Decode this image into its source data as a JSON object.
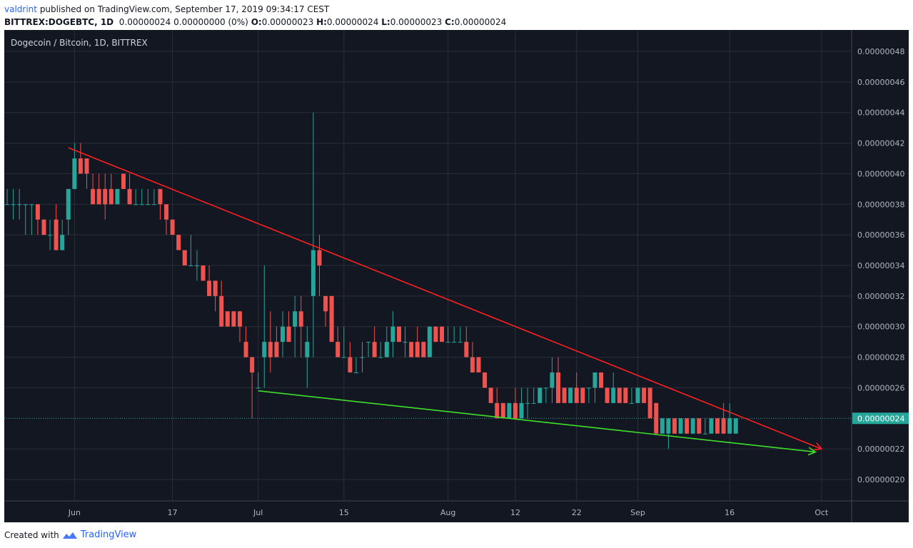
{
  "header": {
    "user": "valdrint",
    "published": "published on TradingView.com, September 17, 2019 09:34:17 CEST",
    "symbol": "BITTREX:DOGEBTC, 1D",
    "change": "0.00000024 0.00000000 (0%)",
    "o_label": "O:",
    "o_value": "0.00000023",
    "h_label": "H:",
    "h_value": "0.00000024",
    "l_label": "L:",
    "l_value": "0.00000023",
    "c_label": "C:",
    "c_value": "0.00000024"
  },
  "footer": {
    "created_with": "Created with",
    "brand": "TradingView"
  },
  "colors": {
    "background": "#131722",
    "grid": "#2a2e39",
    "axis_text": "#b2b5be",
    "up": "#26a69a",
    "down": "#ef5350",
    "upper_trendline": "#ff1f1f",
    "lower_trendline": "#3ee12a",
    "last_price_badge": "#26a69a"
  },
  "chart_data": {
    "type": "candlestick",
    "title": "Dogecoin / Bitcoin, 1D, BITTREX",
    "x_tick_labels": [
      "Jun",
      "17",
      "Jul",
      "15",
      "Aug",
      "12",
      "22",
      "Sep",
      "16",
      "Oct"
    ],
    "x_ticks_date": [
      "2019-06-01",
      "2019-06-17",
      "2019-07-01",
      "2019-07-15",
      "2019-08-01",
      "2019-08-12",
      "2019-08-22",
      "2019-09-01",
      "2019-09-16",
      "2019-10-01"
    ],
    "x_range": [
      "2019-05-21",
      "2019-10-03"
    ],
    "y_tick_labels": [
      "0.00000048",
      "0.00000046",
      "0.00000044",
      "0.00000042",
      "0.00000040",
      "0.00000038",
      "0.00000036",
      "0.00000034",
      "0.00000032",
      "0.00000030",
      "0.00000028",
      "0.00000026",
      "0.00000022",
      "0.00000020"
    ],
    "y_ticks": [
      48,
      46,
      44,
      42,
      40,
      38,
      36,
      34,
      32,
      30,
      28,
      26,
      22,
      20
    ],
    "y_unit_scale": "1e-8 BTC",
    "y_range": [
      18.6,
      49.4
    ],
    "grid": true,
    "last_price": {
      "value": 24,
      "label": "0.00000024"
    },
    "ohlc_fields": [
      "date",
      "open",
      "high",
      "low",
      "close"
    ],
    "candles": [
      [
        "2019-05-21",
        38,
        39,
        38,
        38
      ],
      [
        "2019-05-22",
        38,
        39,
        37,
        38
      ],
      [
        "2019-05-23",
        38,
        39,
        37,
        38
      ],
      [
        "2019-05-24",
        38,
        38,
        36,
        38
      ],
      [
        "2019-05-25",
        38,
        38,
        36,
        38
      ],
      [
        "2019-05-26",
        38,
        38,
        36,
        37
      ],
      [
        "2019-05-27",
        37,
        37,
        36,
        36
      ],
      [
        "2019-05-28",
        36,
        37,
        35,
        36
      ],
      [
        "2019-05-29",
        37,
        38,
        35,
        35
      ],
      [
        "2019-05-30",
        35,
        37,
        35,
        36
      ],
      [
        "2019-05-31",
        37,
        39,
        36,
        39
      ],
      [
        "2019-06-01",
        39,
        42,
        39,
        41
      ],
      [
        "2019-06-02",
        41,
        42,
        40,
        40
      ],
      [
        "2019-06-03",
        41,
        41,
        39,
        40
      ],
      [
        "2019-06-04",
        39,
        40,
        38,
        38
      ],
      [
        "2019-06-05",
        39,
        40,
        38,
        38
      ],
      [
        "2019-06-06",
        39,
        40,
        37,
        38
      ],
      [
        "2019-06-07",
        39,
        40,
        38,
        38
      ],
      [
        "2019-06-08",
        38,
        39,
        38,
        39
      ],
      [
        "2019-06-09",
        40,
        40,
        39,
        39
      ],
      [
        "2019-06-10",
        39,
        40,
        38,
        38
      ],
      [
        "2019-06-11",
        38,
        39,
        38,
        38
      ],
      [
        "2019-06-12",
        38,
        39,
        38,
        38
      ],
      [
        "2019-06-13",
        38,
        39,
        38,
        38
      ],
      [
        "2019-06-14",
        38,
        39,
        38,
        38
      ],
      [
        "2019-06-15",
        39,
        39,
        37,
        38
      ],
      [
        "2019-06-16",
        38,
        38,
        36,
        37
      ],
      [
        "2019-06-17",
        37,
        37,
        36,
        36
      ],
      [
        "2019-06-18",
        36,
        36,
        35,
        35
      ],
      [
        "2019-06-19",
        35,
        35,
        34,
        34
      ],
      [
        "2019-06-20",
        34,
        36,
        34,
        34
      ],
      [
        "2019-06-21",
        34,
        35,
        33,
        34
      ],
      [
        "2019-06-22",
        34,
        34,
        33,
        33
      ],
      [
        "2019-06-23",
        33,
        34,
        32,
        32
      ],
      [
        "2019-06-24",
        33,
        33,
        31,
        32
      ],
      [
        "2019-06-25",
        32,
        33,
        30,
        30
      ],
      [
        "2019-06-26",
        31,
        31,
        30,
        30
      ],
      [
        "2019-06-27",
        31,
        31,
        30,
        30
      ],
      [
        "2019-06-28",
        31,
        31,
        29,
        30
      ],
      [
        "2019-06-29",
        29,
        30,
        28,
        28
      ],
      [
        "2019-06-30",
        28,
        28,
        24,
        27
      ],
      [
        "2019-07-01",
        26,
        27,
        26,
        26
      ],
      [
        "2019-07-02",
        28,
        34,
        26,
        29
      ],
      [
        "2019-07-03",
        29,
        31,
        27,
        28
      ],
      [
        "2019-07-04",
        29,
        30,
        28,
        28
      ],
      [
        "2019-07-05",
        29,
        31,
        28,
        30
      ],
      [
        "2019-07-06",
        30,
        31,
        29,
        29
      ],
      [
        "2019-07-07",
        30,
        32,
        28,
        31
      ],
      [
        "2019-07-08",
        31,
        32,
        28,
        30
      ],
      [
        "2019-07-09",
        28,
        30,
        26,
        29
      ],
      [
        "2019-07-10",
        32,
        44,
        28,
        35
      ],
      [
        "2019-07-11",
        35,
        36,
        32,
        34
      ],
      [
        "2019-07-12",
        32,
        32,
        30,
        31
      ],
      [
        "2019-07-13",
        32,
        32,
        29,
        29
      ],
      [
        "2019-07-14",
        29,
        30,
        28,
        28
      ],
      [
        "2019-07-15",
        28,
        30,
        28,
        28
      ],
      [
        "2019-07-16",
        28,
        29,
        27,
        27
      ],
      [
        "2019-07-17",
        27,
        28,
        27,
        27
      ],
      [
        "2019-07-18",
        28,
        29,
        27,
        28
      ],
      [
        "2019-07-19",
        29,
        29,
        28,
        29
      ],
      [
        "2019-07-20",
        29,
        30,
        28,
        28
      ],
      [
        "2019-07-21",
        28,
        29,
        28,
        28
      ],
      [
        "2019-07-22",
        28,
        30,
        28,
        29
      ],
      [
        "2019-07-23",
        29,
        31,
        28,
        30
      ],
      [
        "2019-07-24",
        30,
        30,
        29,
        29
      ],
      [
        "2019-07-25",
        29,
        30,
        28,
        29
      ],
      [
        "2019-07-26",
        29,
        29,
        28,
        28
      ],
      [
        "2019-07-27",
        29,
        30,
        28,
        28
      ],
      [
        "2019-07-28",
        29,
        29,
        28,
        28
      ],
      [
        "2019-07-29",
        28,
        30,
        28,
        30
      ],
      [
        "2019-07-30",
        30,
        30,
        29,
        29
      ],
      [
        "2019-07-31",
        30,
        30,
        29,
        29
      ],
      [
        "2019-08-01",
        29,
        30,
        29,
        29
      ],
      [
        "2019-08-02",
        29,
        30,
        29,
        29
      ],
      [
        "2019-08-03",
        29,
        30,
        29,
        29
      ],
      [
        "2019-08-04",
        29,
        30,
        28,
        28
      ],
      [
        "2019-08-05",
        28,
        29,
        27,
        27
      ],
      [
        "2019-08-06",
        28,
        28,
        27,
        27
      ],
      [
        "2019-08-07",
        27,
        27,
        26,
        26
      ],
      [
        "2019-08-08",
        26,
        26,
        25,
        25
      ],
      [
        "2019-08-09",
        25,
        26,
        24,
        24
      ],
      [
        "2019-08-10",
        25,
        25,
        24,
        24
      ],
      [
        "2019-08-11",
        24,
        25,
        24,
        25
      ],
      [
        "2019-08-12",
        25,
        26,
        24,
        24
      ],
      [
        "2019-08-13",
        24,
        26,
        24,
        25
      ],
      [
        "2019-08-14",
        25,
        26,
        24,
        25
      ],
      [
        "2019-08-15",
        25,
        26,
        25,
        25
      ],
      [
        "2019-08-16",
        25,
        26,
        25,
        26
      ],
      [
        "2019-08-17",
        26,
        26,
        25,
        26
      ],
      [
        "2019-08-18",
        26,
        28,
        25,
        27
      ],
      [
        "2019-08-19",
        27,
        28,
        25,
        25
      ],
      [
        "2019-08-20",
        26,
        26,
        25,
        25
      ],
      [
        "2019-08-21",
        25,
        26,
        25,
        26
      ],
      [
        "2019-08-22",
        26,
        27,
        25,
        25
      ],
      [
        "2019-08-23",
        26,
        26,
        25,
        25
      ],
      [
        "2019-08-24",
        26,
        26,
        25,
        26
      ],
      [
        "2019-08-25",
        26,
        27,
        25,
        27
      ],
      [
        "2019-08-26",
        27,
        27,
        26,
        26
      ],
      [
        "2019-08-27",
        26,
        26,
        25,
        25
      ],
      [
        "2019-08-28",
        25,
        27,
        25,
        26
      ],
      [
        "2019-08-29",
        26,
        26,
        25,
        25
      ],
      [
        "2019-08-30",
        26,
        26,
        25,
        25
      ],
      [
        "2019-08-31",
        25,
        26,
        25,
        25
      ],
      [
        "2019-09-01",
        25,
        26,
        25,
        26
      ],
      [
        "2019-09-02",
        26,
        26,
        25,
        25
      ],
      [
        "2019-09-03",
        26,
        26,
        24,
        24
      ],
      [
        "2019-09-04",
        25,
        25,
        23,
        23
      ],
      [
        "2019-09-05",
        23,
        24,
        23,
        24
      ],
      [
        "2019-09-06",
        23,
        24,
        22,
        24
      ],
      [
        "2019-09-07",
        24,
        24,
        23,
        23
      ],
      [
        "2019-09-08",
        23,
        24,
        23,
        24
      ],
      [
        "2019-09-09",
        24,
        24,
        23,
        23
      ],
      [
        "2019-09-10",
        23,
        24,
        23,
        24
      ],
      [
        "2019-09-11",
        24,
        24,
        23,
        23
      ],
      [
        "2019-09-12",
        23,
        24,
        23,
        23
      ],
      [
        "2019-09-13",
        23,
        24,
        23,
        24
      ],
      [
        "2019-09-14",
        24,
        24,
        23,
        23
      ],
      [
        "2019-09-15",
        24,
        25,
        23,
        23
      ],
      [
        "2019-09-16",
        23,
        25,
        23,
        24
      ],
      [
        "2019-09-17",
        23,
        24,
        23,
        24
      ]
    ],
    "trendlines": [
      {
        "color": "red",
        "start": [
          "2019-05-31",
          41.7
        ],
        "end": [
          "2019-10-01",
          22.0
        ],
        "arrow": true
      },
      {
        "color": "green",
        "start": [
          "2019-07-01",
          25.8
        ],
        "end": [
          "2019-09-30",
          21.8
        ],
        "arrow": true
      }
    ]
  }
}
